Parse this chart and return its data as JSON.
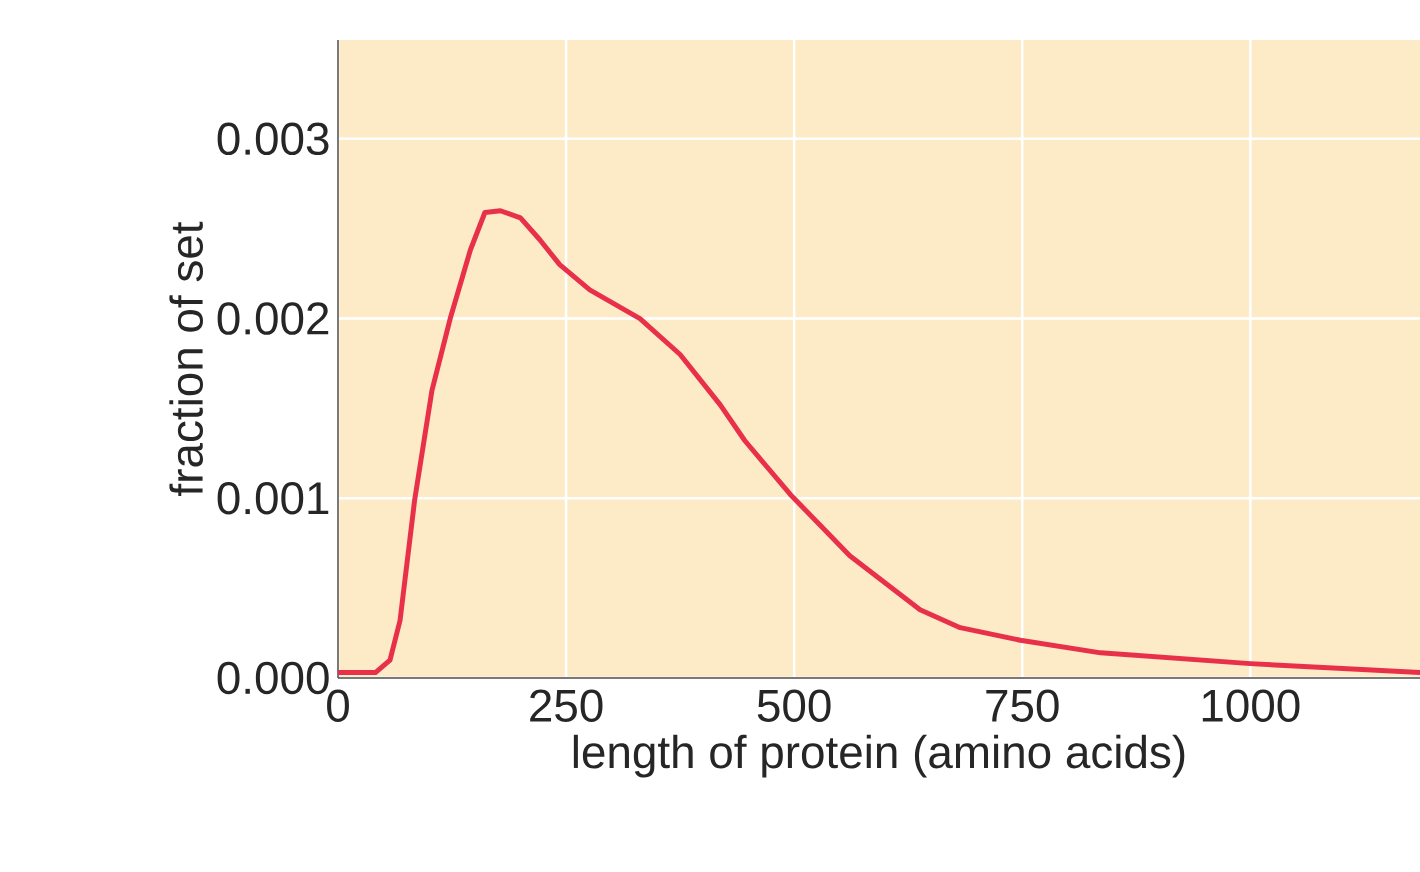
{
  "chart_data": {
    "type": "line",
    "xlabel": "length of protein (amino acids)",
    "ylabel": "fraction of set",
    "x": [
      0,
      41,
      57,
      68,
      84,
      103,
      123,
      145,
      161,
      178,
      200,
      221,
      243,
      276,
      331,
      375,
      419,
      446,
      496,
      561,
      638,
      682,
      748,
      836,
      1000,
      1186
    ],
    "values": [
      3e-05,
      3e-05,
      0.0001,
      0.00032,
      0.00099,
      0.0016,
      0.002,
      0.00238,
      0.00259,
      0.0026,
      0.00256,
      0.00244,
      0.0023,
      0.00216,
      0.002,
      0.0018,
      0.00152,
      0.00132,
      0.00102,
      0.00068,
      0.00038,
      0.00028,
      0.00021,
      0.00014,
      8e-05,
      3e-05
    ],
    "color": "#e8304a",
    "xlim": [
      0,
      1186
    ],
    "ylim": [
      0,
      0.00355
    ],
    "xticks": [
      0,
      250,
      500,
      750,
      1000
    ],
    "yticks": [
      {
        "value": 0,
        "label": "0.000"
      },
      {
        "value": 0.001,
        "label": "0.001"
      },
      {
        "value": 0.002,
        "label": "0.002"
      },
      {
        "value": 0.003,
        "label": "0.003"
      }
    ],
    "grid": true,
    "marker": "none",
    "line_style": "solid"
  }
}
